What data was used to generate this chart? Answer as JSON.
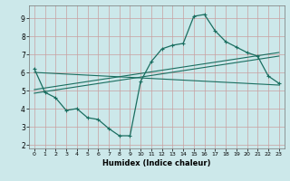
{
  "title": "",
  "xlabel": "Humidex (Indice chaleur)",
  "bg_color": "#cce8ea",
  "grid_color": "#c8a0a0",
  "line_color": "#1a6e60",
  "xlim": [
    -0.5,
    23.5
  ],
  "ylim": [
    1.8,
    9.7
  ],
  "yticks": [
    2,
    3,
    4,
    5,
    6,
    7,
    8,
    9
  ],
  "xticks": [
    0,
    1,
    2,
    3,
    4,
    5,
    6,
    7,
    8,
    9,
    10,
    11,
    12,
    13,
    14,
    15,
    16,
    17,
    18,
    19,
    20,
    21,
    22,
    23
  ],
  "curve1_x": [
    0,
    1,
    2,
    3,
    4,
    5,
    6,
    7,
    8,
    9,
    10,
    11,
    12,
    13,
    14,
    15,
    16,
    17,
    18,
    19,
    20,
    21,
    22,
    23
  ],
  "curve1_y": [
    6.2,
    4.9,
    4.6,
    3.9,
    4.0,
    3.5,
    3.4,
    2.9,
    2.5,
    2.5,
    5.5,
    6.6,
    7.3,
    7.5,
    7.6,
    9.1,
    9.2,
    8.3,
    7.7,
    7.4,
    7.1,
    6.9,
    5.8,
    5.4
  ],
  "line1_x": [
    0,
    23
  ],
  "line1_y": [
    6.0,
    5.3
  ],
  "line2_x": [
    0,
    23
  ],
  "line2_y": [
    4.85,
    6.9
  ],
  "line3_x": [
    0,
    23
  ],
  "line3_y": [
    5.05,
    7.1
  ]
}
